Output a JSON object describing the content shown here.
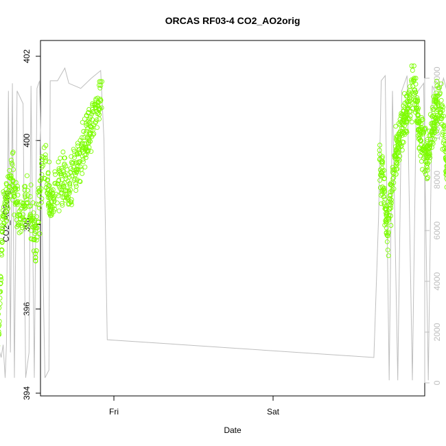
{
  "chart_data": {
    "type": "scatter",
    "title": "ORCAS RF03-4 CO2_AO2orig",
    "xlabel": "Date",
    "ylabel": "CO2_AO2orig",
    "x_ticks": [
      "Fri",
      "Sat"
    ],
    "ylim": [
      394,
      402
    ],
    "y_ticks": [
      "394",
      "396",
      "398",
      "400",
      "402"
    ],
    "y2lim": [
      0,
      12000
    ],
    "y2_ticks": [
      "0",
      "2000",
      "4000",
      "6000",
      "8000",
      "10000",
      "12000"
    ],
    "grid": false,
    "legend": "none",
    "colors": {
      "points": "#7cfc00",
      "altitude_line": "#bebebe",
      "axes": "#000000"
    },
    "series": [
      {
        "type": "scatter",
        "axis": "left",
        "segments": [
          {
            "x_start_hours": -20.0,
            "x_end_hours": -1.8,
            "y_min": 394.3,
            "y_max": 401.4,
            "profile": [
              [
                0.0,
                400.8
              ],
              [
                0.05,
                398.5
              ],
              [
                0.1,
                396.0
              ],
              [
                0.13,
                394.6
              ],
              [
                0.18,
                398.2
              ],
              [
                0.25,
                399.3
              ],
              [
                0.32,
                398.0
              ],
              [
                0.38,
                398.8
              ],
              [
                0.45,
                397.6
              ],
              [
                0.52,
                399.5
              ],
              [
                0.58,
                398.4
              ],
              [
                0.65,
                399.1
              ],
              [
                0.72,
                398.9
              ],
              [
                0.8,
                399.5
              ],
              [
                0.88,
                400.0
              ],
              [
                0.93,
                400.6
              ],
              [
                1.0,
                401.1
              ]
            ]
          },
          {
            "x_start_hours": 40.0,
            "x_end_hours": 52.5,
            "y_min": 396.9,
            "y_max": 402.1,
            "profile": [
              [
                0.0,
                399.3
              ],
              [
                0.05,
                399.0
              ],
              [
                0.1,
                397.8
              ],
              [
                0.14,
                398.8
              ],
              [
                0.2,
                399.6
              ],
              [
                0.28,
                400.3
              ],
              [
                0.35,
                400.8
              ],
              [
                0.42,
                401.2
              ],
              [
                0.5,
                400.0
              ],
              [
                0.58,
                399.6
              ],
              [
                0.65,
                400.4
              ],
              [
                0.72,
                401.0
              ],
              [
                0.78,
                400.3
              ],
              [
                0.85,
                398.6
              ],
              [
                0.9,
                398.2
              ],
              [
                0.95,
                400.0
              ],
              [
                1.0,
                401.0
              ]
            ]
          }
        ]
      },
      {
        "type": "line",
        "axis": "right",
        "points": [
          [
            -20.0,
            12150
          ],
          [
            -19.5,
            11500
          ],
          [
            -18.7,
            11800
          ],
          [
            -18.6,
            11650
          ],
          [
            -18.1,
            1100
          ],
          [
            -17.9,
            12000
          ],
          [
            -17.5,
            1500
          ],
          [
            -17.0,
            1000
          ],
          [
            -16.7,
            1500
          ],
          [
            -16.4,
            200
          ],
          [
            -16.2,
            1500
          ],
          [
            -15.9,
            11500
          ],
          [
            -15.6,
            1200
          ],
          [
            -15.3,
            11800
          ],
          [
            -15.0,
            200
          ],
          [
            -14.6,
            11500
          ],
          [
            -13.7,
            11000
          ],
          [
            -13.3,
            200
          ],
          [
            -12.8,
            1200
          ],
          [
            -12.5,
            11700
          ],
          [
            -12.0,
            200
          ],
          [
            -11.6,
            11600
          ],
          [
            -11.2,
            11900
          ],
          [
            -10.4,
            200
          ],
          [
            -9.8,
            500
          ],
          [
            -9.6,
            11900
          ],
          [
            -8.5,
            11900
          ],
          [
            -7.4,
            12400
          ],
          [
            -6.8,
            11800
          ],
          [
            -5.0,
            11600
          ],
          [
            -3.4,
            12000
          ],
          [
            -2.0,
            12300
          ],
          [
            -1.5,
            9600
          ],
          [
            -1.0,
            1700
          ],
          [
            39.2,
            1000
          ],
          [
            39.9,
            6500
          ],
          [
            40.3,
            11900
          ],
          [
            40.9,
            12100
          ],
          [
            41.5,
            100
          ],
          [
            42.0,
            11500
          ],
          [
            42.8,
            100
          ],
          [
            43.4,
            11500
          ],
          [
            44.2,
            12100
          ],
          [
            45.0,
            100
          ],
          [
            45.6,
            11400
          ],
          [
            46.7,
            11800
          ],
          [
            47.4,
            100
          ],
          [
            48.0,
            11700
          ],
          [
            48.9,
            11200
          ],
          [
            49.7,
            12000
          ],
          [
            50.7,
            11000
          ],
          [
            51.2,
            12300
          ],
          [
            51.9,
            11900
          ],
          [
            52.2,
            8800
          ],
          [
            52.6,
            3500
          ]
        ]
      }
    ]
  }
}
